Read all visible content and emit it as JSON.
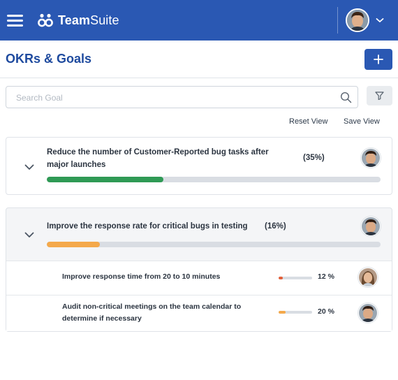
{
  "header": {
    "brand_bold": "Team",
    "brand_light": "Suite",
    "colors": {
      "bar": "#2a58b3"
    }
  },
  "page": {
    "title": "OKRs & Goals"
  },
  "search": {
    "placeholder": "Search Goal",
    "value": ""
  },
  "view_actions": {
    "reset_label": "Reset View",
    "save_label": "Save View"
  },
  "goals": [
    {
      "title_line1": "Reduce the number of Customer-Reported bug tasks after",
      "title_line2": "major launches",
      "percent_label": "(35%)",
      "progress": 0.35,
      "bar_color": "#2f9a55",
      "expanded": false
    },
    {
      "title_line1": "Improve the response rate for critical bugs in testing",
      "percent_label": "(16%)",
      "progress": 0.16,
      "bar_color": "#f4a94b",
      "expanded": true,
      "key_results": [
        {
          "title_line1": "Improve response time from 20 to 10 minutes",
          "percent_label": "12 %",
          "progress": 0.12,
          "bar_color": "#e2603a"
        },
        {
          "title_line1": "Audit non-critical meetings on the team calendar to",
          "title_line2": "determine if necessary",
          "percent_label": "20 %",
          "progress": 0.2,
          "bar_color": "#f4a94b"
        }
      ]
    }
  ]
}
